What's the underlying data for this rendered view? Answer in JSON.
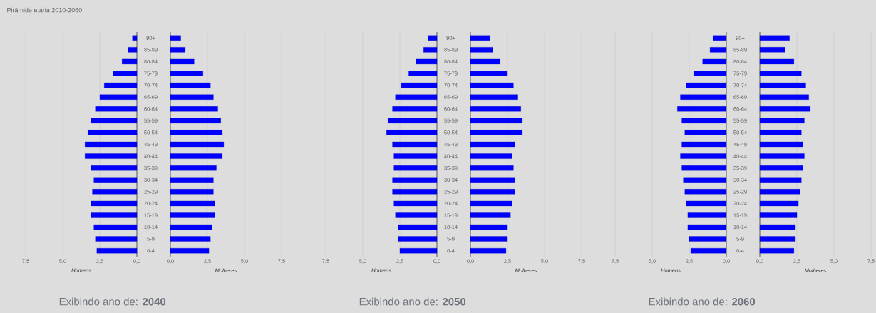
{
  "chart_data": [
    {
      "type": "bar",
      "orientation": "horizontal",
      "title": "Pirâmide etária 2010-2060",
      "xlabel": "Homens",
      "annotations": [
        "Exibindo ano de: **2040**"
      ],
      "grid": "x",
      "categories": [
        "90+",
        "85-89",
        "80-84",
        "75-79",
        "70-74",
        "65-69",
        "60-64",
        "55-59",
        "50-54",
        "45-49",
        "40-44",
        "35-39",
        "30-34",
        "25-29",
        "20-24",
        "15-19",
        "10-14",
        "5-9",
        "0-4"
      ],
      "xlim": [
        7.5,
        0
      ],
      "xticks": [
        {
          "value": 7.5,
          "label": "7,5"
        },
        {
          "value": 5,
          "label": "5,0"
        },
        {
          "value": 2.5,
          "label": "2,5"
        },
        {
          "value": 0,
          "label": "0,0"
        }
      ],
      "series": [
        {
          "color": "#0000ff",
          "values": [
            0.3,
            0.6,
            1.0,
            1.6,
            2.2,
            2.5,
            2.8,
            3.1,
            3.3,
            3.5,
            3.5,
            3.1,
            2.9,
            3.0,
            3.1,
            3.1,
            2.9,
            2.8,
            2.7
          ]
        }
      ]
    },
    {
      "type": "bar",
      "orientation": "horizontal",
      "xlabel": "Mulheres",
      "grid": "x",
      "tick_labels": "x",
      "categories": [
        null,
        null,
        null,
        null,
        null,
        null,
        null,
        null,
        null,
        null,
        null,
        null,
        null,
        null,
        null,
        null,
        null,
        null,
        null
      ],
      "xlim": [
        0,
        7.5
      ],
      "xticks": [
        {
          "value": 0,
          "label": "0,0"
        },
        {
          "value": 2.5,
          "label": "2,5"
        },
        {
          "value": 5,
          "label": "5,0"
        },
        {
          "value": 7.5,
          "label": "7,5"
        }
      ],
      "series": [
        {
          "color": "#0000ff",
          "values": [
            0.7,
            1.0,
            1.6,
            2.2,
            2.7,
            2.9,
            3.2,
            3.4,
            3.5,
            3.6,
            3.5,
            3.1,
            2.9,
            2.9,
            3.0,
            3.0,
            2.8,
            2.7,
            2.6
          ]
        }
      ]
    },
    {
      "type": "bar",
      "orientation": "horizontal",
      "xlabel": "Homens",
      "annotations": [
        "Exibindo ano de: **2050**"
      ],
      "grid": "x",
      "categories": [
        "90+",
        "85-89",
        "80-84",
        "75-79",
        "70-74",
        "65-69",
        "60-64",
        "55-59",
        "50-54",
        "45-49",
        "40-44",
        "35-39",
        "30-34",
        "25-29",
        "20-24",
        "15-19",
        "10-14",
        "5-9",
        "0-4"
      ],
      "xlim": [
        7.5,
        0
      ],
      "xticks": [
        {
          "value": 7.5,
          "label": "7,5"
        },
        {
          "value": 5,
          "label": "5,0"
        },
        {
          "value": 2.5,
          "label": "2,5"
        },
        {
          "value": 0,
          "label": "0,0"
        }
      ],
      "series": [
        {
          "color": "#0000ff",
          "values": [
            0.6,
            0.9,
            1.4,
            1.9,
            2.4,
            2.8,
            3.0,
            3.3,
            3.4,
            3.0,
            2.9,
            2.9,
            3.0,
            3.0,
            2.9,
            2.8,
            2.6,
            2.6,
            2.5
          ]
        }
      ]
    },
    {
      "type": "bar",
      "orientation": "horizontal",
      "xlabel": "Mulheres",
      "grid": "x",
      "tick_labels": "x",
      "categories": [
        null,
        null,
        null,
        null,
        null,
        null,
        null,
        null,
        null,
        null,
        null,
        null,
        null,
        null,
        null,
        null,
        null,
        null,
        null
      ],
      "xlim": [
        0,
        7.5
      ],
      "xticks": [
        {
          "value": 0,
          "label": "0,0"
        },
        {
          "value": 2.5,
          "label": "2,5"
        },
        {
          "value": 5,
          "label": "5,0"
        },
        {
          "value": 7.5,
          "label": "7,5"
        }
      ],
      "series": [
        {
          "color": "#0000ff",
          "values": [
            1.3,
            1.5,
            2.0,
            2.5,
            2.9,
            3.2,
            3.4,
            3.5,
            3.5,
            3.0,
            2.8,
            2.9,
            3.0,
            3.0,
            2.8,
            2.7,
            2.5,
            2.5,
            2.4
          ]
        }
      ]
    },
    {
      "type": "bar",
      "orientation": "horizontal",
      "xlabel": "Homens",
      "annotations": [
        "Exibindo ano de: **2060**"
      ],
      "grid": "x",
      "categories": [
        "90+",
        "85-89",
        "80-84",
        "75-79",
        "70-74",
        "65-69",
        "60-64",
        "55-59",
        "50-54",
        "45-49",
        "40-44",
        "35-39",
        "30-34",
        "25-29",
        "20-24",
        "15-19",
        "10-14",
        "5-9",
        "0-4"
      ],
      "xlim": [
        7.5,
        0
      ],
      "xticks": [
        {
          "value": 7.5,
          "label": "7,5"
        },
        {
          "value": 5,
          "label": "5,0"
        },
        {
          "value": 2.5,
          "label": "2,5"
        },
        {
          "value": 0,
          "label": "0,0"
        }
      ],
      "series": [
        {
          "color": "#0000ff",
          "values": [
            0.9,
            1.1,
            1.6,
            2.2,
            2.7,
            3.1,
            3.3,
            3.0,
            2.8,
            3.0,
            3.1,
            3.0,
            2.9,
            2.8,
            2.7,
            2.6,
            2.6,
            2.5,
            2.4
          ]
        }
      ]
    },
    {
      "type": "bar",
      "orientation": "horizontal",
      "xlabel": "Mulheres",
      "grid": "x",
      "tick_labels": "x",
      "categories": [
        null,
        null,
        null,
        null,
        null,
        null,
        null,
        null,
        null,
        null,
        null,
        null,
        null,
        null,
        null,
        null,
        null,
        null,
        null
      ],
      "xlim": [
        0,
        7.5
      ],
      "xticks": [
        {
          "value": 0,
          "label": "0,0"
        },
        {
          "value": 2.5,
          "label": "2,5"
        },
        {
          "value": 5,
          "label": "5,0"
        },
        {
          "value": 7.5,
          "label": "7,5"
        }
      ],
      "series": [
        {
          "color": "#0000ff",
          "values": [
            2.0,
            1.7,
            2.3,
            2.8,
            3.1,
            3.3,
            3.4,
            3.0,
            2.8,
            2.9,
            3.0,
            2.9,
            2.8,
            2.7,
            2.6,
            2.5,
            2.4,
            2.4,
            2.3
          ]
        }
      ]
    }
  ]
}
